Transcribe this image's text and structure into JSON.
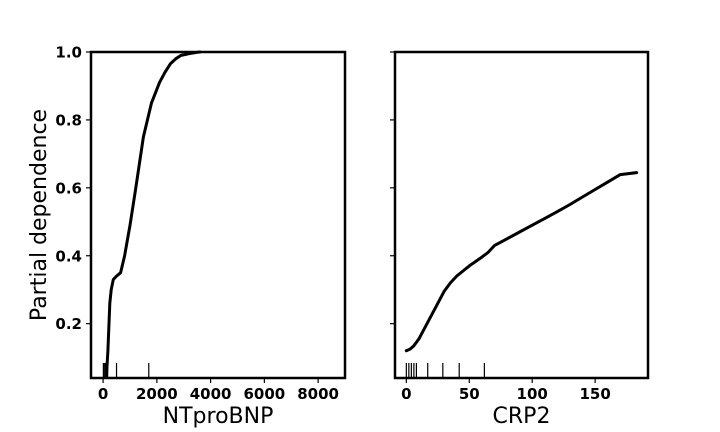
{
  "chart_data": [
    {
      "type": "line",
      "title": "",
      "xlabel": "NTproBNP",
      "ylabel": "Partial dependence",
      "xlim": [
        -450,
        9000
      ],
      "ylim": [
        0.04,
        1.0
      ],
      "x_ticks": [
        0,
        2000,
        4000,
        6000,
        8000
      ],
      "x_tick_labels": [
        "0",
        "2000",
        "4000",
        "6000",
        "8000"
      ],
      "y_ticks": [
        0.2,
        0.4,
        0.6,
        0.8,
        1.0
      ],
      "y_tick_labels": [
        "0.2",
        "0.4",
        "0.6",
        "0.8",
        "1.0"
      ],
      "series": [
        {
          "x": [
            120,
            180,
            250,
            300,
            380,
            500,
            650,
            800,
            1000,
            1200,
            1500,
            1800,
            2100,
            2300,
            2500,
            2700,
            2900,
            3200,
            3500,
            3600
          ],
          "y": [
            0.04,
            0.12,
            0.26,
            0.3,
            0.33,
            0.34,
            0.35,
            0.4,
            0.49,
            0.59,
            0.75,
            0.85,
            0.91,
            0.94,
            0.965,
            0.98,
            0.99,
            0.995,
            0.999,
            1.0
          ]
        }
      ],
      "rug": [
        10,
        40,
        80,
        120,
        170,
        500,
        1700
      ],
      "grid": false
    },
    {
      "type": "line",
      "title": "",
      "xlabel": "CRP2",
      "ylabel": "",
      "xlim": [
        -9,
        192
      ],
      "ylim": [
        0.04,
        1.0
      ],
      "x_ticks": [
        0,
        50,
        100,
        150
      ],
      "x_tick_labels": [
        "0",
        "50",
        "100",
        "150"
      ],
      "y_ticks": [
        0.2,
        0.4,
        0.6,
        0.8,
        1.0
      ],
      "y_tick_labels": [],
      "series": [
        {
          "x": [
            0,
            3,
            6,
            10,
            15,
            20,
            25,
            30,
            35,
            40,
            45,
            50,
            55,
            60,
            65,
            70,
            80,
            90,
            100,
            110,
            120,
            130,
            140,
            150,
            160,
            170,
            183
          ],
          "y": [
            0.12,
            0.125,
            0.135,
            0.155,
            0.19,
            0.225,
            0.26,
            0.295,
            0.32,
            0.34,
            0.355,
            0.37,
            0.383,
            0.396,
            0.41,
            0.43,
            0.45,
            0.47,
            0.49,
            0.51,
            0.53,
            0.551,
            0.573,
            0.595,
            0.617,
            0.639,
            0.645
          ]
        }
      ],
      "rug": [
        0,
        2,
        4,
        6,
        8,
        17,
        29,
        42,
        62
      ],
      "grid": false
    }
  ]
}
